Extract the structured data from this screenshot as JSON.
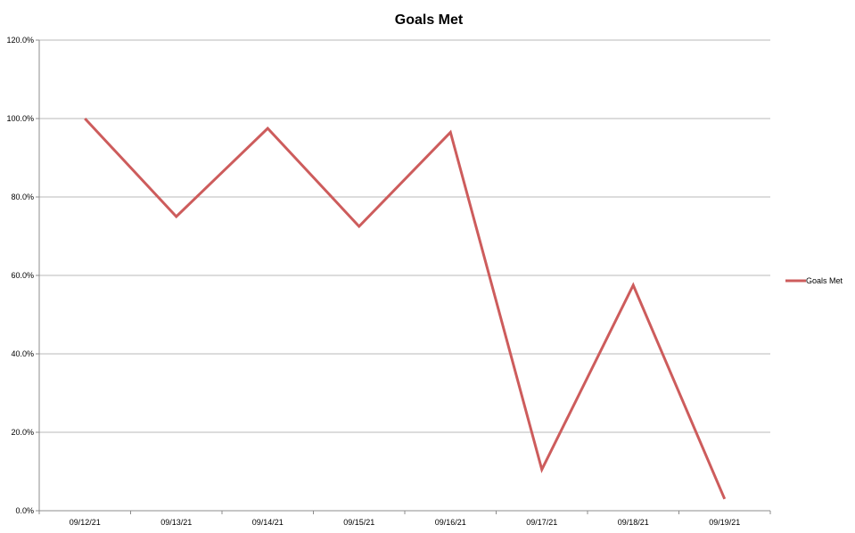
{
  "chart_data": {
    "type": "line",
    "title": "Goals Met",
    "xlabel": "",
    "ylabel": "",
    "categories": [
      "09/12/21",
      "09/13/21",
      "09/14/21",
      "09/15/21",
      "09/16/21",
      "09/17/21",
      "09/18/21",
      "09/19/21"
    ],
    "series": [
      {
        "name": "Goals Met",
        "color": "#cd5c5c",
        "values": [
          100.0,
          75.0,
          97.5,
          72.5,
          96.5,
          10.5,
          57.5,
          3.0
        ]
      }
    ],
    "ylim": [
      0,
      120
    ],
    "yticks": [
      0,
      20,
      40,
      60,
      80,
      100,
      120
    ],
    "ytick_labels": [
      "0.0%",
      "20.0%",
      "40.0%",
      "60.0%",
      "80.0%",
      "100.0%",
      "120.0%"
    ],
    "grid": true,
    "legend": "right"
  }
}
